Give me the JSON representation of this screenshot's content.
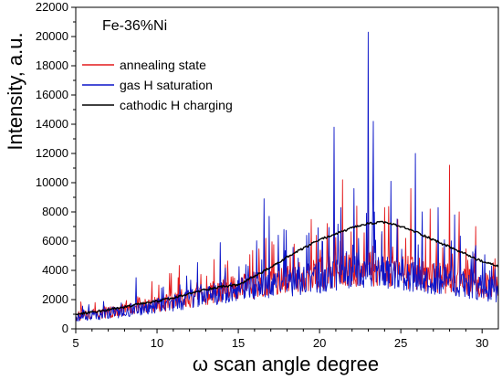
{
  "chart_data": {
    "type": "line",
    "annotation": "Fe-36%Ni",
    "xlabel": "ω scan angle degree",
    "ylabel": "Intensity, a.u.",
    "xlim": [
      5,
      31
    ],
    "ylim": [
      0,
      22000
    ],
    "x_ticks": [
      5,
      10,
      15,
      20,
      25,
      30
    ],
    "y_ticks": [
      0,
      2000,
      4000,
      6000,
      8000,
      10000,
      12000,
      14000,
      16000,
      18000,
      20000,
      22000
    ],
    "legend_position": "top-left",
    "series": [
      {
        "name": "annealing state",
        "color": "#e41a1c",
        "style": "noisy",
        "baseline": [
          [
            5,
            900
          ],
          [
            8,
            1300
          ],
          [
            11,
            1900
          ],
          [
            14,
            2600
          ],
          [
            17,
            3200
          ],
          [
            20,
            3800
          ],
          [
            23,
            4200
          ],
          [
            26,
            3800
          ],
          [
            29,
            3200
          ],
          [
            31,
            2800
          ]
        ],
        "peaks": [
          [
            6.2,
            1800
          ],
          [
            8.8,
            2200
          ],
          [
            11.5,
            2700
          ],
          [
            15.2,
            3500
          ],
          [
            16.7,
            6200
          ],
          [
            17.8,
            5200
          ],
          [
            19.8,
            6400
          ],
          [
            20.9,
            7600
          ],
          [
            21.4,
            10200
          ],
          [
            22.3,
            8400
          ],
          [
            23.0,
            9600
          ],
          [
            24.0,
            8300
          ],
          [
            25.3,
            6200
          ],
          [
            25.6,
            9600
          ],
          [
            26.8,
            8200
          ],
          [
            28.0,
            11200
          ],
          [
            28.6,
            8000
          ],
          [
            29.6,
            7000
          ],
          [
            30.8,
            4800
          ]
        ]
      },
      {
        "name": "gas H saturation",
        "color": "#0a14c8",
        "style": "noisy",
        "baseline": [
          [
            5,
            800
          ],
          [
            8,
            1200
          ],
          [
            11,
            1800
          ],
          [
            14,
            2500
          ],
          [
            17,
            3000
          ],
          [
            20,
            3500
          ],
          [
            23,
            4000
          ],
          [
            26,
            3600
          ],
          [
            29,
            3000
          ],
          [
            31,
            2600
          ]
        ],
        "peaks": [
          [
            8.7,
            3500
          ],
          [
            10.3,
            2800
          ],
          [
            13.9,
            5900
          ],
          [
            15.6,
            4300
          ],
          [
            16.6,
            8900
          ],
          [
            16.9,
            7700
          ],
          [
            17.8,
            6800
          ],
          [
            19.2,
            6400
          ],
          [
            20.9,
            13800
          ],
          [
            21.3,
            8300
          ],
          [
            22.1,
            9600
          ],
          [
            23.0,
            20300
          ],
          [
            23.3,
            14200
          ],
          [
            24.4,
            10100
          ],
          [
            25.9,
            12000
          ],
          [
            26.3,
            8000
          ],
          [
            27.3,
            8300
          ],
          [
            28.3,
            7800
          ],
          [
            29.6,
            5700
          ],
          [
            30.6,
            4300
          ]
        ]
      },
      {
        "name": "cathodic H charging",
        "color": "#000000",
        "style": "smooth",
        "points": [
          [
            5,
            1000
          ],
          [
            7,
            1300
          ],
          [
            9,
            1700
          ],
          [
            11,
            2100
          ],
          [
            13,
            2700
          ],
          [
            14,
            2900
          ],
          [
            15,
            3000
          ],
          [
            16,
            3600
          ],
          [
            17,
            4200
          ],
          [
            18,
            4900
          ],
          [
            19,
            5500
          ],
          [
            20,
            6100
          ],
          [
            21,
            6500
          ],
          [
            22,
            6900
          ],
          [
            23,
            7200
          ],
          [
            24,
            7300
          ],
          [
            25,
            7000
          ],
          [
            26,
            6600
          ],
          [
            27,
            6100
          ],
          [
            28,
            5600
          ],
          [
            29,
            5100
          ],
          [
            30,
            4600
          ],
          [
            31,
            4300
          ]
        ]
      }
    ]
  }
}
